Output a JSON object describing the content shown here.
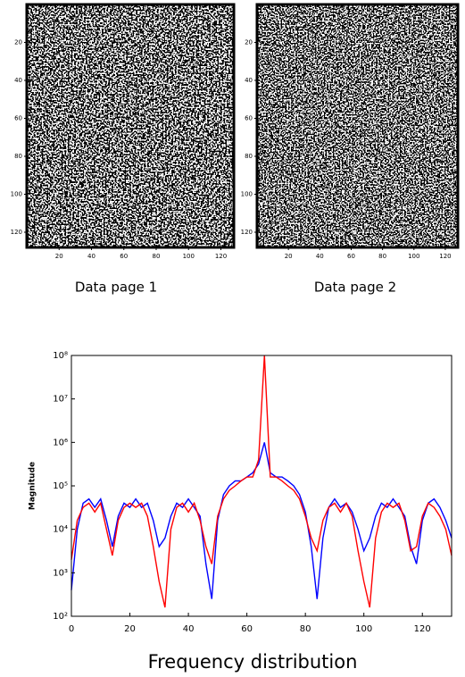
{
  "chart_data": [
    {
      "type": "image",
      "title": "Data page 1",
      "xlim": [
        0,
        128
      ],
      "ylim": [
        0,
        128
      ],
      "y_reversed": true,
      "xticks": [
        20,
        40,
        60,
        80,
        100,
        120
      ],
      "yticks": [
        20,
        40,
        60,
        80,
        100,
        120
      ]
    },
    {
      "type": "image",
      "title": "Data page 2",
      "xlim": [
        0,
        128
      ],
      "ylim": [
        0,
        128
      ],
      "y_reversed": true,
      "xticks": [
        20,
        40,
        60,
        80,
        100,
        120
      ],
      "yticks": [
        20,
        40,
        60,
        80,
        100,
        120
      ]
    },
    {
      "type": "line",
      "xlabel": "Frequency distribution",
      "ylabel": "Magnitude",
      "log_y": true,
      "xlim": [
        0,
        130
      ],
      "ylim": [
        100,
        100000000
      ],
      "xticks": [
        0,
        20,
        40,
        60,
        80,
        100,
        120
      ],
      "yticks": [
        {
          "value": 100,
          "label": "10²"
        },
        {
          "value": 1000,
          "label": "10³"
        },
        {
          "value": 10000,
          "label": "10⁴"
        },
        {
          "value": 100000,
          "label": "10⁵"
        },
        {
          "value": 1000000,
          "label": "10⁶"
        },
        {
          "value": 10000000,
          "label": "10⁷"
        },
        {
          "value": 100000000,
          "label": "10⁸"
        }
      ],
      "x": [
        0,
        2,
        4,
        6,
        8,
        10,
        12,
        14,
        16,
        18,
        20,
        22,
        24,
        26,
        28,
        30,
        32,
        34,
        36,
        38,
        40,
        42,
        44,
        46,
        48,
        50,
        52,
        54,
        56,
        58,
        60,
        62,
        64,
        66,
        68,
        70,
        72,
        74,
        76,
        78,
        80,
        82,
        84,
        86,
        88,
        90,
        92,
        94,
        96,
        98,
        100,
        102,
        104,
        106,
        108,
        110,
        112,
        114,
        116,
        118,
        120,
        122,
        124,
        126,
        128,
        130
      ],
      "series": [
        {
          "color": "#0000ff",
          "values": [
            400,
            10000,
            40000,
            50000,
            32000,
            50000,
            16000,
            4000,
            20000,
            40000,
            32000,
            50000,
            32000,
            40000,
            16000,
            4000,
            6300,
            20000,
            40000,
            32000,
            50000,
            32000,
            20000,
            1600,
            250,
            16000,
            63000,
            100000,
            130000,
            130000,
            160000,
            200000,
            320000,
            1000000,
            200000,
            160000,
            160000,
            130000,
            100000,
            63000,
            25000,
            4000,
            250,
            6300,
            32000,
            50000,
            32000,
            40000,
            25000,
            10000,
            3200,
            6300,
            20000,
            40000,
            32000,
            50000,
            32000,
            20000,
            4000,
            1600,
            16000,
            40000,
            50000,
            32000,
            16000,
            6300
          ]
        },
        {
          "color": "#ff0000",
          "values": [
            2000,
            16000,
            32000,
            40000,
            25000,
            40000,
            10000,
            2500,
            16000,
            32000,
            40000,
            32000,
            40000,
            20000,
            4000,
            630,
            160,
            10000,
            32000,
            40000,
            25000,
            40000,
            16000,
            4000,
            1600,
            20000,
            50000,
            79000,
            100000,
            130000,
            160000,
            160000,
            400000,
            100000000,
            160000,
            160000,
            130000,
            100000,
            79000,
            50000,
            20000,
            6300,
            3200,
            16000,
            32000,
            40000,
            25000,
            40000,
            20000,
            3200,
            630,
            160,
            6300,
            25000,
            40000,
            32000,
            40000,
            16000,
            3200,
            4000,
            20000,
            40000,
            32000,
            20000,
            10000,
            2500
          ]
        }
      ]
    }
  ]
}
